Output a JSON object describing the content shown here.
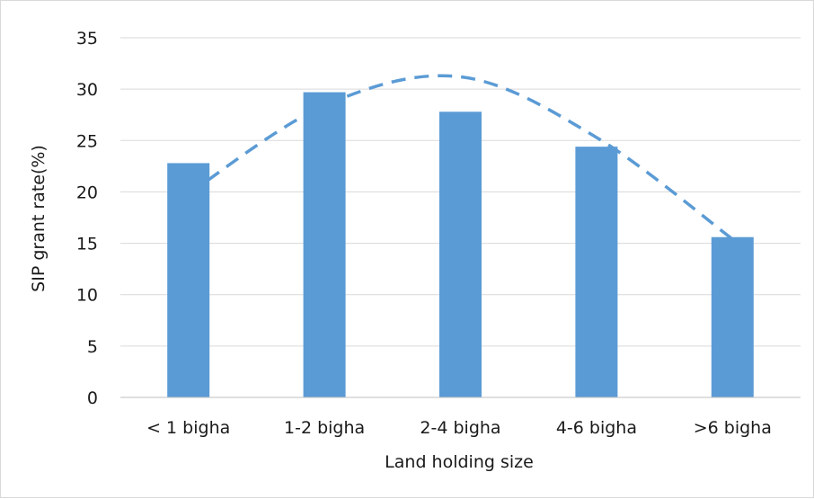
{
  "chart_data": {
    "type": "bar",
    "title": "",
    "xlabel": "Land holding size",
    "ylabel": "SIP grant rate(%)",
    "categories": [
      "< 1 bigha",
      "1-2 bigha",
      "2-4 bigha",
      "4-6 bigha",
      ">6 bigha"
    ],
    "values": [
      22.8,
      29.7,
      27.8,
      24.4,
      15.6
    ],
    "ylim": [
      0,
      35
    ],
    "yticks": [
      "0",
      "5",
      "10",
      "15",
      "20",
      "25",
      "30",
      "35"
    ],
    "grid": true,
    "legend": "none",
    "trendline": {
      "type": "polynomial",
      "style": "dashed",
      "values": [
        19.8,
        28.4,
        31.2,
        25.3,
        15.4
      ]
    },
    "colors": {
      "bar": "#5b9bd5",
      "trendline": "#5b9bd5",
      "grid": "#d9d9d9"
    }
  }
}
